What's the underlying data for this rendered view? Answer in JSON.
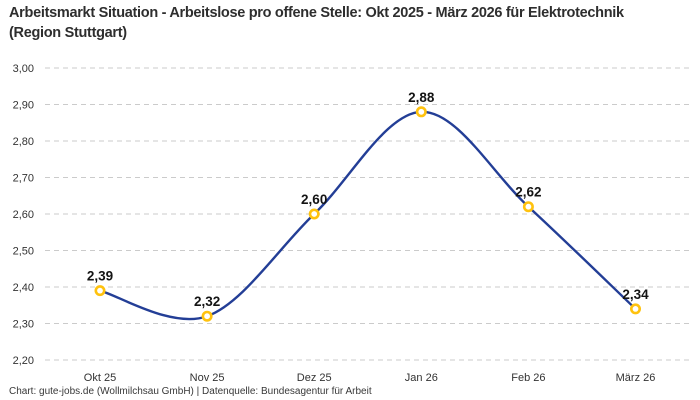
{
  "header": {
    "title": "Arbeitsmarkt Situation - Arbeitslose pro offene Stelle: Okt 2025 - März 2026 für Elektrotechnik (Region Stuttgart)"
  },
  "footer": {
    "text": "Chart: gute-jobs.de (Wollmilchsau GmbH) | Datenquelle: Bundesagentur für Arbeit"
  },
  "chart_data": {
    "type": "line",
    "title": "Arbeitsmarkt Situation - Arbeitslose pro offene Stelle: Okt 2025 - März 2026 für Elektrotechnik (Region Stuttgart)",
    "categories": [
      "Okt 25",
      "Nov 25",
      "Dez 25",
      "Jan 26",
      "Feb 26",
      "März 26"
    ],
    "series": [
      {
        "name": "Arbeitslose pro offene Stelle",
        "values": [
          2.39,
          2.32,
          2.6,
          2.88,
          2.62,
          2.34
        ],
        "value_labels": [
          "2,39",
          "2,32",
          "2,60",
          "2,88",
          "2,62",
          "2,34"
        ]
      }
    ],
    "xlabel": "",
    "ylabel": "",
    "ylim": [
      2.2,
      3.0
    ],
    "ytick_step": 0.1,
    "ytick_labels": [
      "2,20",
      "2,30",
      "2,40",
      "2,50",
      "2,60",
      "2,70",
      "2,80",
      "2,90",
      "3,00"
    ],
    "grid": "horizontal-dashed",
    "legend_position": "none",
    "line_style": "smooth-spline",
    "marker_style": "open-circle"
  },
  "colors": {
    "line": "#233E96",
    "marker_ring": "#FFC20E",
    "marker_fill": "#FFFFFF",
    "grid": "#CBCBCB",
    "axis_text": "#333333",
    "value_text": "#141414",
    "title_text": "#2E2E2E",
    "footer_text": "#383838",
    "background": "#FFFFFF"
  }
}
